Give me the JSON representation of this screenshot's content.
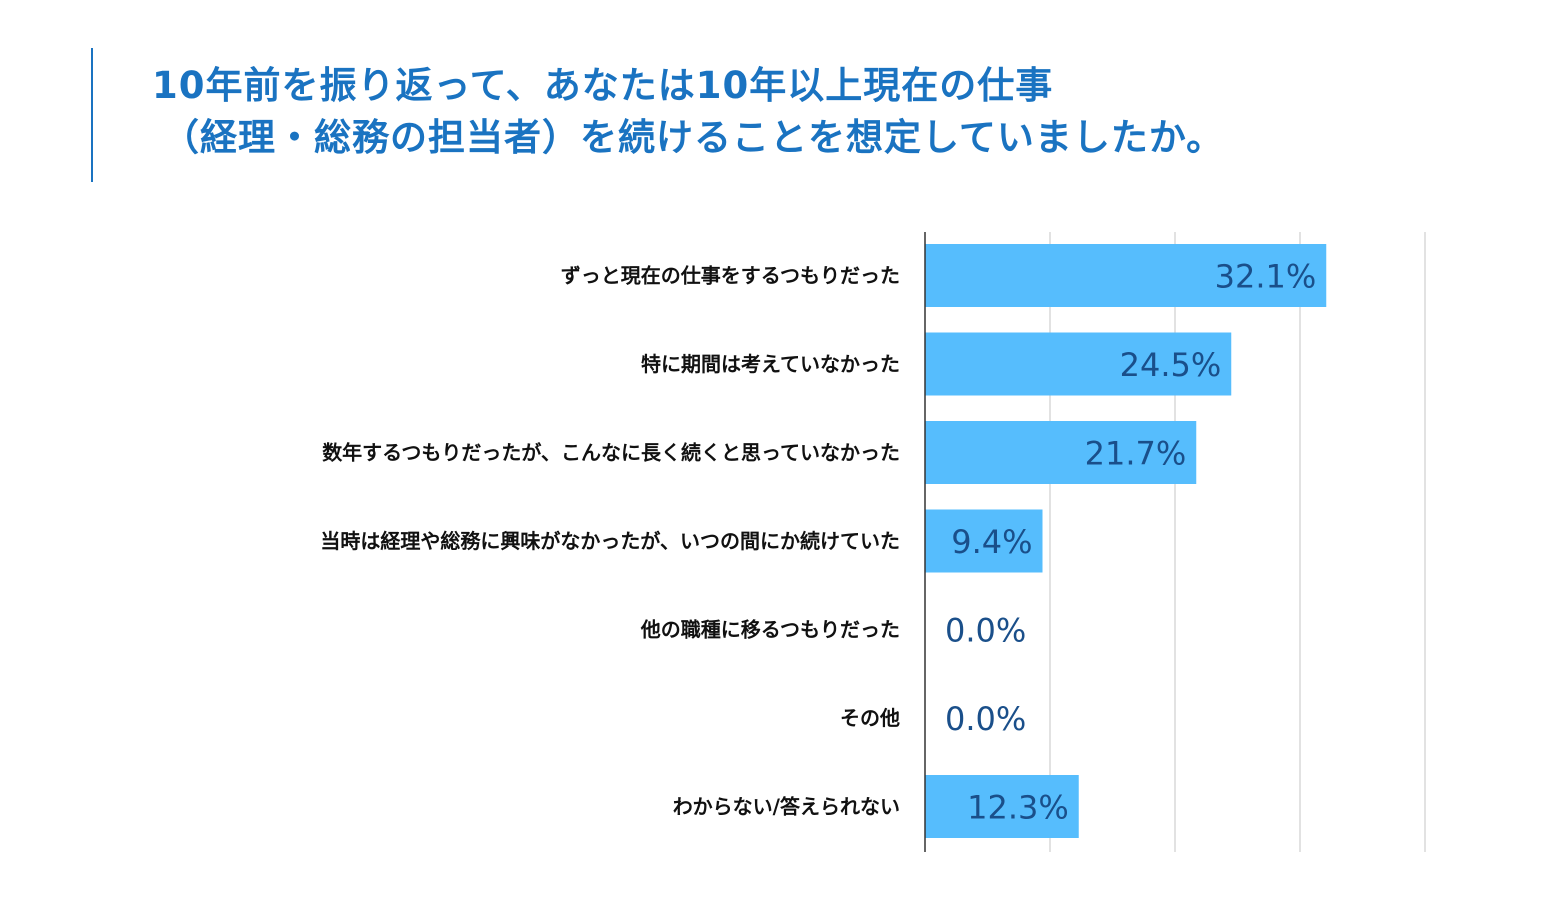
{
  "title": {
    "line1": "10年前を振り返って、あなたは10年以上現在の仕事",
    "line2": "（経理・総務の担当者）を続けることを想定していましたか。"
  },
  "colors": {
    "title": "#1a73c1",
    "bar": "#56bdfd",
    "value_label": "#1a4f8a",
    "grid": "#d8d8d8",
    "axis": "#333333"
  },
  "chart_data": {
    "type": "bar",
    "orientation": "horizontal",
    "categories": [
      "ずっと現在の仕事をするつもりだった",
      "特に期間は考えていなかった",
      "数年するつもりだったが、こんなに長く続くと思っていなかった",
      "当時は経理や総務に興味がなかったが、いつの間にか続けていた",
      "他の職種に移るつもりだった",
      "その他",
      "わからない/答えられない"
    ],
    "values": [
      32.1,
      24.5,
      21.7,
      9.4,
      0.0,
      0.0,
      12.3
    ],
    "value_labels": [
      "32.1%",
      "24.5%",
      "21.7%",
      "9.4%",
      "0.0%",
      "0.0%",
      "12.3%"
    ],
    "xlim": [
      0,
      40
    ],
    "grid": true,
    "legend": "none"
  }
}
